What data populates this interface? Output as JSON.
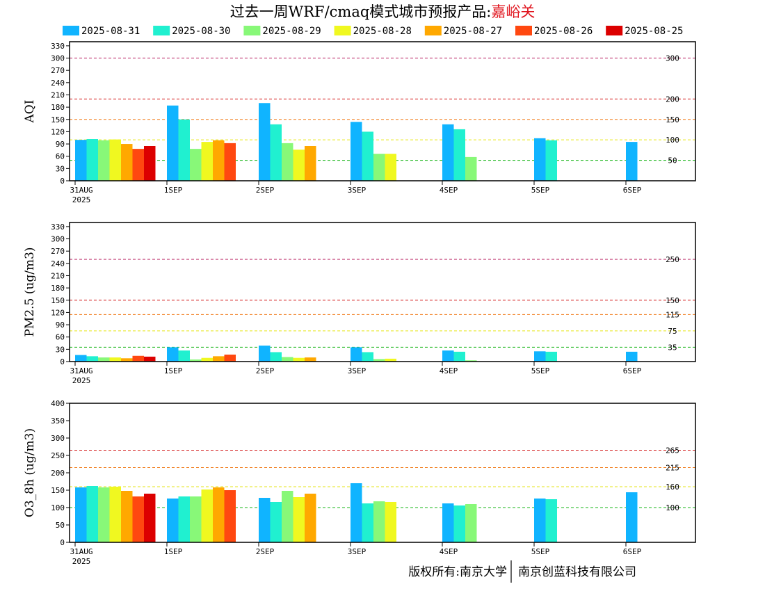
{
  "title": {
    "prefix": "过去一周WRF/cmaq模式城市预报产品:",
    "city": "嘉峪关"
  },
  "footer": {
    "left": "版权所有:南京大学",
    "right": "南京创蓝科技有限公司"
  },
  "colors": {
    "series": [
      "#10b4ff",
      "#20f0d0",
      "#88f878",
      "#f0f820",
      "#ffa800",
      "#ff4810",
      "#dc0000"
    ]
  },
  "chart_data": [
    {
      "type": "bar",
      "ylabel": "AQI",
      "ylim": [
        0,
        340
      ],
      "yticks": [
        0,
        30,
        60,
        90,
        120,
        150,
        180,
        210,
        240,
        270,
        300,
        330
      ],
      "categories": [
        "31AUG",
        "1SEP",
        "2SEP",
        "3SEP",
        "4SEP",
        "5SEP",
        "6SEP"
      ],
      "first_category_sublabel": "2025",
      "reference_lines": [
        {
          "value": 300,
          "label": "300",
          "color": "#b4145a"
        },
        {
          "value": 200,
          "label": "200",
          "color": "#d21414"
        },
        {
          "value": 150,
          "label": "150",
          "color": "#f07814"
        },
        {
          "value": 100,
          "label": "100",
          "color": "#e6e614"
        },
        {
          "value": 50,
          "label": "50",
          "color": "#14b414"
        }
      ],
      "series": [
        {
          "name": "2025-08-31",
          "values": [
            100,
            184,
            190,
            144,
            138,
            104,
            95
          ]
        },
        {
          "name": "2025-08-30",
          "values": [
            102,
            150,
            138,
            120,
            126,
            99,
            null
          ]
        },
        {
          "name": "2025-08-29",
          "values": [
            99,
            78,
            92,
            66,
            58,
            null,
            null
          ]
        },
        {
          "name": "2025-08-28",
          "values": [
            101,
            95,
            76,
            66,
            null,
            null,
            null
          ]
        },
        {
          "name": "2025-08-27",
          "values": [
            90,
            99,
            85,
            null,
            null,
            null,
            null
          ]
        },
        {
          "name": "2025-08-26",
          "values": [
            78,
            92,
            null,
            null,
            null,
            null,
            null
          ]
        },
        {
          "name": "2025-08-25",
          "values": [
            85,
            null,
            null,
            null,
            null,
            null,
            null
          ]
        }
      ]
    },
    {
      "type": "bar",
      "ylabel": "PM2.5 (ug/m3)",
      "ylim": [
        0,
        340
      ],
      "yticks": [
        0,
        30,
        60,
        90,
        120,
        150,
        180,
        210,
        240,
        270,
        300,
        330
      ],
      "categories": [
        "31AUG",
        "1SEP",
        "2SEP",
        "3SEP",
        "4SEP",
        "5SEP",
        "6SEP"
      ],
      "first_category_sublabel": "2025",
      "reference_lines": [
        {
          "value": 250,
          "label": "250",
          "color": "#b4145a"
        },
        {
          "value": 150,
          "label": "150",
          "color": "#d21414"
        },
        {
          "value": 115,
          "label": "115",
          "color": "#f07814"
        },
        {
          "value": 75,
          "label": "75",
          "color": "#e6e614"
        },
        {
          "value": 35,
          "label": "35",
          "color": "#14b414"
        }
      ],
      "series": [
        {
          "name": "2025-08-31",
          "values": [
            16,
            35,
            39,
            35,
            27,
            25,
            24
          ]
        },
        {
          "name": "2025-08-30",
          "values": [
            13,
            27,
            23,
            23,
            24,
            24,
            null
          ]
        },
        {
          "name": "2025-08-29",
          "values": [
            10,
            5,
            11,
            6,
            3,
            null,
            null
          ]
        },
        {
          "name": "2025-08-28",
          "values": [
            10,
            9,
            9,
            7,
            null,
            null,
            null
          ]
        },
        {
          "name": "2025-08-27",
          "values": [
            8,
            13,
            10,
            null,
            null,
            null,
            null
          ]
        },
        {
          "name": "2025-08-26",
          "values": [
            14,
            17,
            null,
            null,
            null,
            null,
            null
          ]
        },
        {
          "name": "2025-08-25",
          "values": [
            12,
            null,
            null,
            null,
            null,
            null,
            null
          ]
        }
      ]
    },
    {
      "type": "bar",
      "ylabel": "O3_8h (ug/m3)",
      "ylim": [
        0,
        400
      ],
      "yticks": [
        0,
        50,
        100,
        150,
        200,
        250,
        300,
        350,
        400
      ],
      "categories": [
        "31AUG",
        "1SEP",
        "2SEP",
        "3SEP",
        "4SEP",
        "5SEP",
        "6SEP"
      ],
      "first_category_sublabel": "2025",
      "reference_lines": [
        {
          "value": 265,
          "label": "265",
          "color": "#d21414"
        },
        {
          "value": 215,
          "label": "215",
          "color": "#f07814"
        },
        {
          "value": 160,
          "label": "160",
          "color": "#e6e614"
        },
        {
          "value": 100,
          "label": "100",
          "color": "#14b414"
        }
      ],
      "series": [
        {
          "name": "2025-08-31",
          "values": [
            158,
            126,
            128,
            170,
            112,
            126,
            144
          ]
        },
        {
          "name": "2025-08-30",
          "values": [
            162,
            132,
            116,
            112,
            106,
            124,
            null
          ]
        },
        {
          "name": "2025-08-29",
          "values": [
            158,
            132,
            148,
            118,
            110,
            null,
            null
          ]
        },
        {
          "name": "2025-08-28",
          "values": [
            160,
            152,
            130,
            116,
            null,
            null,
            null
          ]
        },
        {
          "name": "2025-08-27",
          "values": [
            148,
            158,
            140,
            null,
            null,
            null,
            null
          ]
        },
        {
          "name": "2025-08-26",
          "values": [
            132,
            150,
            null,
            null,
            null,
            null,
            null
          ]
        },
        {
          "name": "2025-08-25",
          "values": [
            140,
            null,
            null,
            null,
            null,
            null,
            null
          ]
        }
      ]
    }
  ]
}
